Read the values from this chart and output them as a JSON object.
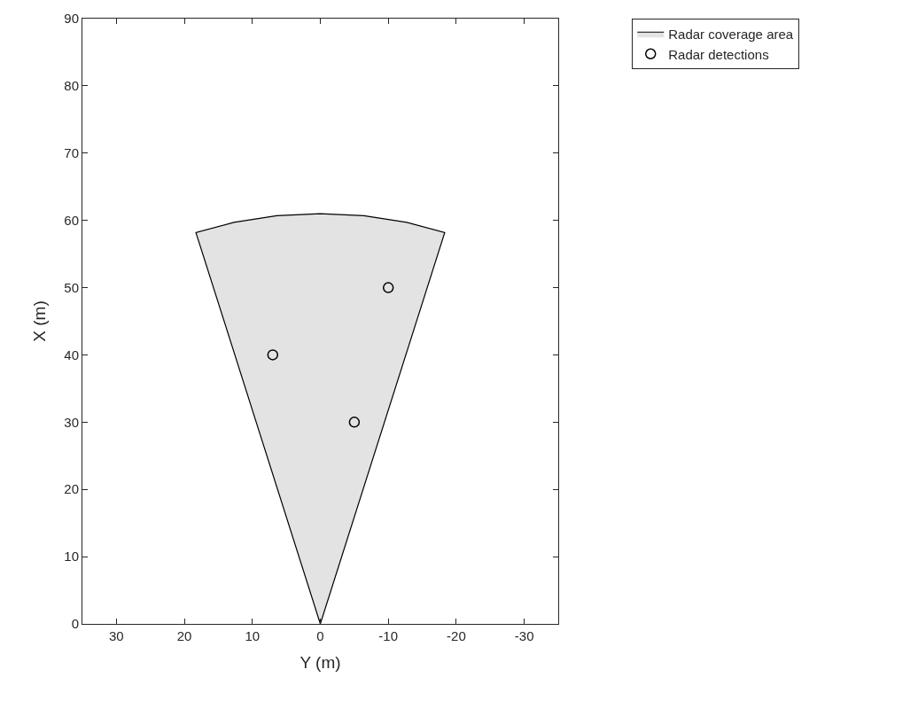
{
  "chart_data": {
    "type": "scatter",
    "xlabel": "Y (m)",
    "ylabel": "X (m)",
    "xlim": [
      35,
      -35
    ],
    "xticks": [
      30,
      20,
      10,
      0,
      -10,
      -20,
      -30
    ],
    "ylim": [
      0,
      90
    ],
    "yticks": [
      0,
      10,
      20,
      30,
      40,
      50,
      60,
      70,
      80,
      90
    ],
    "legend": "top right",
    "series": [
      {
        "name": "Radar coverage area",
        "type": "area",
        "color": "#e3e3e3",
        "x": [
          0,
          18.3,
          12.7,
          6.4,
          0,
          -6.4,
          -12.7,
          -18.3,
          0
        ],
        "values": [
          0,
          58.2,
          59.7,
          60.7,
          61,
          60.7,
          59.7,
          58.2,
          0
        ]
      },
      {
        "name": "Radar detections",
        "marker": "circle",
        "color": "#000000",
        "x": [
          7,
          -5,
          -10
        ],
        "values": [
          40,
          30,
          50
        ]
      }
    ]
  }
}
